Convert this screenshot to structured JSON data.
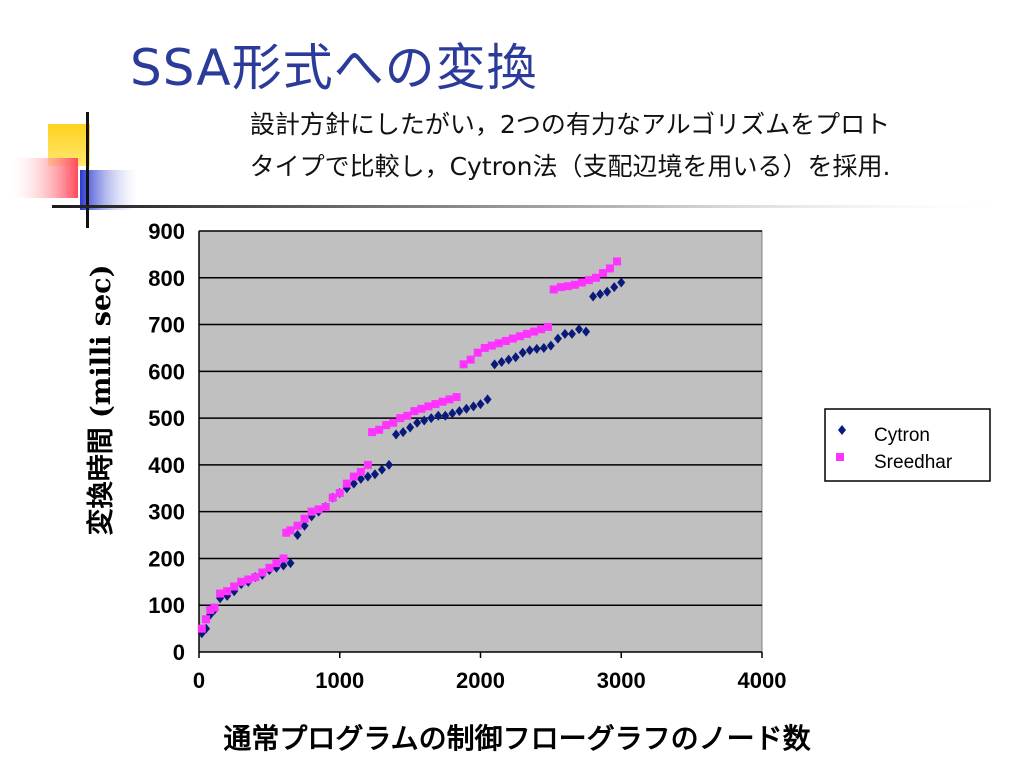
{
  "slide": {
    "title": "SSA形式への変換",
    "subtitle_line1": "設計方針にしたがい，2つの有力なアルゴリズムをプロト",
    "subtitle_line2": "タイプで比較し，Cytron法（支配辺境を用いる）を採用."
  },
  "colors": {
    "title": "#2b3b9a",
    "plot_bg": "#c0c0c0",
    "cytron": "#0a1a7a",
    "sreedhar": "#ff33ff",
    "deco_yellow": "#ffd21f",
    "deco_red": "#ff4a5a",
    "deco_blue": "#2a3ad0"
  },
  "chart_data": {
    "type": "scatter",
    "xlabel": "通常プログラムの制御フローグラフのノード数",
    "ylabel": "変換時間 (milli sec)",
    "xlim": [
      0,
      4000
    ],
    "ylim": [
      0,
      900
    ],
    "x_ticks": [
      "0",
      "1000",
      "2000",
      "3000",
      "4000"
    ],
    "y_ticks": [
      "0",
      "100",
      "200",
      "300",
      "400",
      "500",
      "600",
      "700",
      "800",
      "900"
    ],
    "grid": "horizontal",
    "legend_position": "right",
    "series": [
      {
        "name": "Cytron",
        "marker": "diamond",
        "points": [
          [
            20,
            40
          ],
          [
            50,
            50
          ],
          [
            80,
            80
          ],
          [
            110,
            90
          ],
          [
            150,
            115
          ],
          [
            200,
            120
          ],
          [
            250,
            130
          ],
          [
            300,
            145
          ],
          [
            350,
            150
          ],
          [
            400,
            160
          ],
          [
            450,
            165
          ],
          [
            500,
            175
          ],
          [
            550,
            180
          ],
          [
            600,
            185
          ],
          [
            650,
            190
          ],
          [
            700,
            250
          ],
          [
            750,
            270
          ],
          [
            800,
            290
          ],
          [
            850,
            300
          ],
          [
            900,
            310
          ],
          [
            950,
            330
          ],
          [
            1000,
            340
          ],
          [
            1050,
            350
          ],
          [
            1100,
            360
          ],
          [
            1150,
            370
          ],
          [
            1200,
            375
          ],
          [
            1250,
            380
          ],
          [
            1300,
            390
          ],
          [
            1350,
            400
          ],
          [
            1400,
            465
          ],
          [
            1450,
            470
          ],
          [
            1500,
            480
          ],
          [
            1550,
            490
          ],
          [
            1600,
            495
          ],
          [
            1650,
            500
          ],
          [
            1700,
            505
          ],
          [
            1750,
            505
          ],
          [
            1800,
            510
          ],
          [
            1850,
            515
          ],
          [
            1900,
            520
          ],
          [
            1950,
            525
          ],
          [
            2000,
            530
          ],
          [
            2050,
            540
          ],
          [
            2100,
            615
          ],
          [
            2150,
            620
          ],
          [
            2200,
            625
          ],
          [
            2250,
            630
          ],
          [
            2300,
            640
          ],
          [
            2350,
            645
          ],
          [
            2400,
            648
          ],
          [
            2450,
            650
          ],
          [
            2500,
            655
          ],
          [
            2550,
            670
          ],
          [
            2600,
            680
          ],
          [
            2650,
            680
          ],
          [
            2700,
            690
          ],
          [
            2750,
            685
          ],
          [
            2800,
            760
          ],
          [
            2850,
            765
          ],
          [
            2900,
            770
          ],
          [
            2950,
            780
          ],
          [
            3000,
            790
          ]
        ]
      },
      {
        "name": "Sreedhar",
        "marker": "square",
        "points": [
          [
            20,
            50
          ],
          [
            50,
            70
          ],
          [
            80,
            90
          ],
          [
            110,
            95
          ],
          [
            150,
            125
          ],
          [
            200,
            130
          ],
          [
            250,
            140
          ],
          [
            300,
            150
          ],
          [
            350,
            155
          ],
          [
            400,
            160
          ],
          [
            450,
            170
          ],
          [
            500,
            180
          ],
          [
            550,
            190
          ],
          [
            600,
            200
          ],
          [
            620,
            255
          ],
          [
            650,
            260
          ],
          [
            700,
            270
          ],
          [
            750,
            285
          ],
          [
            800,
            300
          ],
          [
            850,
            305
          ],
          [
            900,
            310
          ],
          [
            950,
            330
          ],
          [
            1000,
            340
          ],
          [
            1050,
            360
          ],
          [
            1100,
            375
          ],
          [
            1150,
            385
          ],
          [
            1200,
            400
          ],
          [
            1230,
            470
          ],
          [
            1280,
            475
          ],
          [
            1330,
            485
          ],
          [
            1380,
            490
          ],
          [
            1430,
            500
          ],
          [
            1480,
            505
          ],
          [
            1530,
            515
          ],
          [
            1580,
            520
          ],
          [
            1630,
            525
          ],
          [
            1680,
            530
          ],
          [
            1730,
            535
          ],
          [
            1780,
            540
          ],
          [
            1830,
            545
          ],
          [
            1880,
            615
          ],
          [
            1930,
            625
          ],
          [
            1980,
            640
          ],
          [
            2030,
            650
          ],
          [
            2080,
            655
          ],
          [
            2130,
            660
          ],
          [
            2180,
            665
          ],
          [
            2230,
            670
          ],
          [
            2280,
            675
          ],
          [
            2330,
            680
          ],
          [
            2380,
            685
          ],
          [
            2430,
            690
          ],
          [
            2480,
            695
          ],
          [
            2520,
            775
          ],
          [
            2570,
            780
          ],
          [
            2620,
            782
          ],
          [
            2670,
            785
          ],
          [
            2720,
            790
          ],
          [
            2770,
            795
          ],
          [
            2820,
            800
          ],
          [
            2870,
            810
          ],
          [
            2920,
            820
          ],
          [
            2970,
            835
          ]
        ]
      }
    ]
  }
}
